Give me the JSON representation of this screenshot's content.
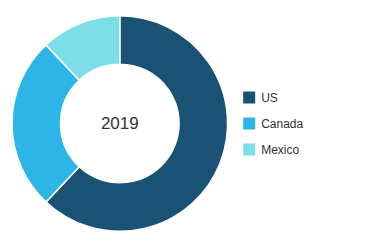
{
  "chart_data": {
    "type": "donut",
    "categories": [
      "US",
      "Canada",
      "Mexico"
    ],
    "values": [
      62,
      26,
      12
    ],
    "colors": [
      "#1a5276",
      "#2db5e8",
      "#7ddde8"
    ],
    "annotations": [
      "2019"
    ],
    "legend": "right"
  }
}
